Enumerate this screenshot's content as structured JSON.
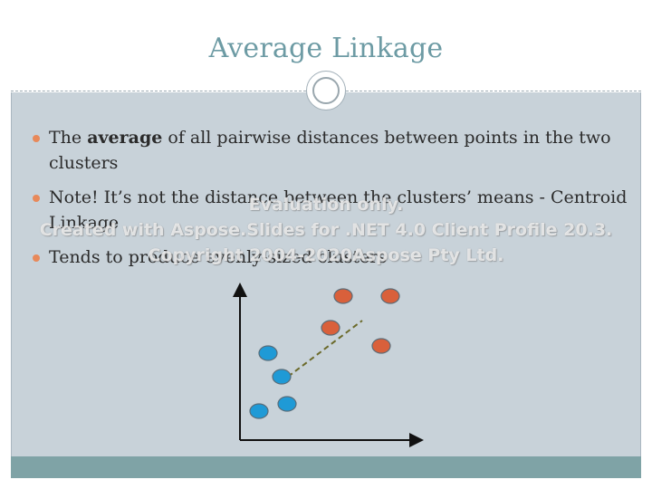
{
  "slide": {
    "title": "Average Linkage",
    "bullets": [
      {
        "pre": "The ",
        "bold": "average",
        "post": " of all pairwise distances between points in the two clusters"
      },
      {
        "text": "Note! It’s not the distance between the clusters’ means - Centroid Linkage"
      },
      {
        "text": "Tends to produce evenly-sized clusters"
      }
    ]
  },
  "watermark": {
    "line1": "Evaluation only.",
    "line2": "Created with Aspose.Slides for .NET 4.0 Client Profile 20.3.",
    "line3": "Copyright 2004-2020Aspose Pty Ltd."
  },
  "colors": {
    "title": "#6d9ba4",
    "background": "#c8d2d9",
    "footer": "#7fa3a6",
    "bullet_marker": "#e8895a",
    "cluster_red": "#d9603b",
    "cluster_blue": "#1f9ad6",
    "link_line": "#6b6a2a"
  }
}
